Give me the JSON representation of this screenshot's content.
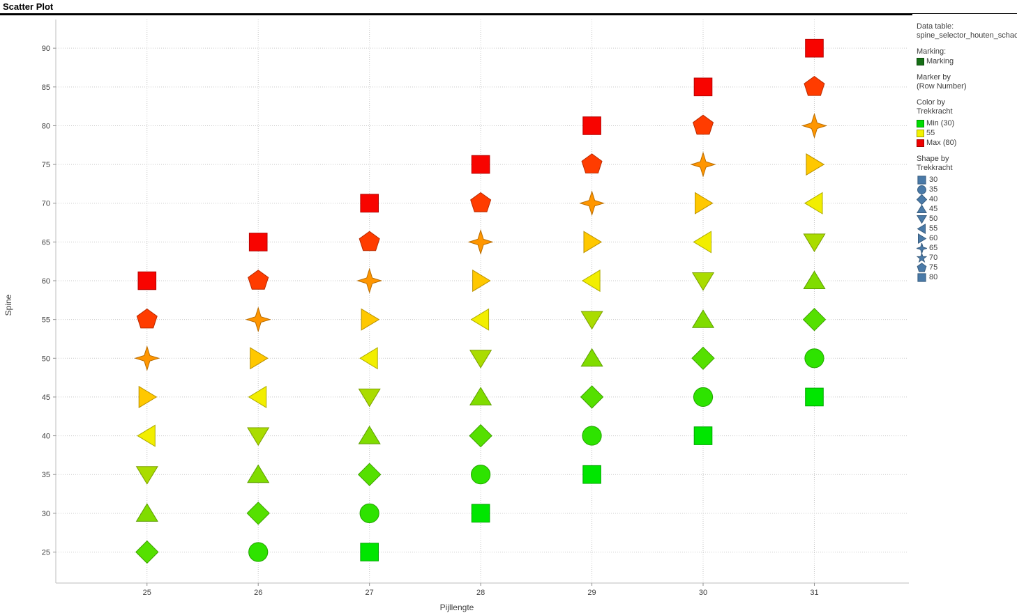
{
  "title": "Scatter Plot",
  "axes": {
    "xlabel": "Pijllengte",
    "ylabel": "Spine",
    "x_ticks": [
      25,
      26,
      27,
      28,
      29,
      30,
      31
    ],
    "y_ticks": [
      25,
      30,
      35,
      40,
      45,
      50,
      55,
      60,
      65,
      70,
      75,
      80,
      85,
      90
    ]
  },
  "legend": {
    "data_table_label": "Data table:",
    "data_table_value": "spine_selector_houten_schac",
    "marking_label": "Marking:",
    "marking_items": [
      {
        "label": "Marking",
        "color": "#156E15"
      }
    ],
    "marker_by_label": "Marker by",
    "marker_by_value": "(Row Number)",
    "color_by_label": "Color by",
    "color_by_value": "Trekkracht",
    "color_items": [
      {
        "label": "Min (30)",
        "color": "#00DC00"
      },
      {
        "label": "55",
        "color": "#F2F200"
      },
      {
        "label": "Max (80)",
        "color": "#EE0000"
      }
    ],
    "shape_by_label": "Shape by",
    "shape_by_value": "Trekkracht",
    "icon_color": "#4A7AA8",
    "shape_items": [
      {
        "label": "30",
        "shape": "square"
      },
      {
        "label": "35",
        "shape": "circle"
      },
      {
        "label": "40",
        "shape": "diamond"
      },
      {
        "label": "45",
        "shape": "triangle-up"
      },
      {
        "label": "50",
        "shape": "triangle-down"
      },
      {
        "label": "55",
        "shape": "triangle-left"
      },
      {
        "label": "60",
        "shape": "triangle-right"
      },
      {
        "label": "65",
        "shape": "star4"
      },
      {
        "label": "70",
        "shape": "star5"
      },
      {
        "label": "75",
        "shape": "pentagon"
      },
      {
        "label": "80",
        "shape": "square"
      }
    ]
  },
  "colors": {
    "axis_line": "#BEBEBE",
    "grid": "#C9C9C9",
    "tick": "#909090",
    "tick_text": "#404040",
    "legend_text": "#3C3C3C"
  },
  "chart_data": {
    "type": "scatter",
    "title": "Scatter Plot",
    "xlabel": "Pijllengte",
    "ylabel": "Spine",
    "xlim": [
      24.18,
      31.85
    ],
    "ylim": [
      21.0,
      93.7
    ],
    "x_ticks": [
      25,
      26,
      27,
      28,
      29,
      30,
      31
    ],
    "y_ticks": [
      25,
      30,
      35,
      40,
      45,
      50,
      55,
      60,
      65,
      70,
      75,
      80,
      85,
      90
    ],
    "grid": "dotted",
    "legend_position": "right",
    "shape_by_trekkracht": {
      "30": "square",
      "35": "circle",
      "40": "diamond",
      "45": "triangle-up",
      "50": "triangle-down",
      "55": "triangle-left",
      "60": "triangle-right",
      "65": "star4",
      "70": "star5",
      "75": "pentagon",
      "80": "square"
    },
    "color_by_trekkracht": {
      "30": "#00E600",
      "35": "#2EE300",
      "40": "#55E000",
      "45": "#80DC00",
      "50": "#AADC00",
      "55": "#F2EE00",
      "60": "#FFC800",
      "65": "#FF9600",
      "75": "#FF3C00",
      "80": "#F80400"
    },
    "points": [
      {
        "x": 25,
        "y": 25,
        "trekkracht": 40
      },
      {
        "x": 25,
        "y": 30,
        "trekkracht": 45
      },
      {
        "x": 25,
        "y": 35,
        "trekkracht": 50
      },
      {
        "x": 25,
        "y": 40,
        "trekkracht": 55
      },
      {
        "x": 25,
        "y": 45,
        "trekkracht": 60
      },
      {
        "x": 25,
        "y": 50,
        "trekkracht": 65
      },
      {
        "x": 25,
        "y": 55,
        "trekkracht": 75
      },
      {
        "x": 25,
        "y": 60,
        "trekkracht": 80
      },
      {
        "x": 26,
        "y": 25,
        "trekkracht": 35
      },
      {
        "x": 26,
        "y": 30,
        "trekkracht": 40
      },
      {
        "x": 26,
        "y": 35,
        "trekkracht": 45
      },
      {
        "x": 26,
        "y": 40,
        "trekkracht": 50
      },
      {
        "x": 26,
        "y": 45,
        "trekkracht": 55
      },
      {
        "x": 26,
        "y": 50,
        "trekkracht": 60
      },
      {
        "x": 26,
        "y": 55,
        "trekkracht": 65
      },
      {
        "x": 26,
        "y": 60,
        "trekkracht": 75
      },
      {
        "x": 26,
        "y": 65,
        "trekkracht": 80
      },
      {
        "x": 27,
        "y": 25,
        "trekkracht": 30
      },
      {
        "x": 27,
        "y": 30,
        "trekkracht": 35
      },
      {
        "x": 27,
        "y": 35,
        "trekkracht": 40
      },
      {
        "x": 27,
        "y": 40,
        "trekkracht": 45
      },
      {
        "x": 27,
        "y": 45,
        "trekkracht": 50
      },
      {
        "x": 27,
        "y": 50,
        "trekkracht": 55
      },
      {
        "x": 27,
        "y": 55,
        "trekkracht": 60
      },
      {
        "x": 27,
        "y": 60,
        "trekkracht": 65
      },
      {
        "x": 27,
        "y": 65,
        "trekkracht": 75
      },
      {
        "x": 27,
        "y": 70,
        "trekkracht": 80
      },
      {
        "x": 28,
        "y": 30,
        "trekkracht": 30
      },
      {
        "x": 28,
        "y": 35,
        "trekkracht": 35
      },
      {
        "x": 28,
        "y": 40,
        "trekkracht": 40
      },
      {
        "x": 28,
        "y": 45,
        "trekkracht": 45
      },
      {
        "x": 28,
        "y": 50,
        "trekkracht": 50
      },
      {
        "x": 28,
        "y": 55,
        "trekkracht": 55
      },
      {
        "x": 28,
        "y": 60,
        "trekkracht": 60
      },
      {
        "x": 28,
        "y": 65,
        "trekkracht": 65
      },
      {
        "x": 28,
        "y": 70,
        "trekkracht": 75
      },
      {
        "x": 28,
        "y": 75,
        "trekkracht": 80
      },
      {
        "x": 29,
        "y": 35,
        "trekkracht": 30
      },
      {
        "x": 29,
        "y": 40,
        "trekkracht": 35
      },
      {
        "x": 29,
        "y": 45,
        "trekkracht": 40
      },
      {
        "x": 29,
        "y": 50,
        "trekkracht": 45
      },
      {
        "x": 29,
        "y": 55,
        "trekkracht": 50
      },
      {
        "x": 29,
        "y": 60,
        "trekkracht": 55
      },
      {
        "x": 29,
        "y": 65,
        "trekkracht": 60
      },
      {
        "x": 29,
        "y": 70,
        "trekkracht": 65
      },
      {
        "x": 29,
        "y": 75,
        "trekkracht": 75
      },
      {
        "x": 29,
        "y": 80,
        "trekkracht": 80
      },
      {
        "x": 30,
        "y": 40,
        "trekkracht": 30
      },
      {
        "x": 30,
        "y": 45,
        "trekkracht": 35
      },
      {
        "x": 30,
        "y": 50,
        "trekkracht": 40
      },
      {
        "x": 30,
        "y": 55,
        "trekkracht": 45
      },
      {
        "x": 30,
        "y": 60,
        "trekkracht": 50
      },
      {
        "x": 30,
        "y": 65,
        "trekkracht": 55
      },
      {
        "x": 30,
        "y": 70,
        "trekkracht": 60
      },
      {
        "x": 30,
        "y": 75,
        "trekkracht": 65
      },
      {
        "x": 30,
        "y": 80,
        "trekkracht": 75
      },
      {
        "x": 30,
        "y": 85,
        "trekkracht": 80
      },
      {
        "x": 31,
        "y": 45,
        "trekkracht": 30
      },
      {
        "x": 31,
        "y": 50,
        "trekkracht": 35
      },
      {
        "x": 31,
        "y": 55,
        "trekkracht": 40
      },
      {
        "x": 31,
        "y": 60,
        "trekkracht": 45
      },
      {
        "x": 31,
        "y": 65,
        "trekkracht": 50
      },
      {
        "x": 31,
        "y": 70,
        "trekkracht": 55
      },
      {
        "x": 31,
        "y": 75,
        "trekkracht": 60
      },
      {
        "x": 31,
        "y": 80,
        "trekkracht": 65
      },
      {
        "x": 31,
        "y": 85,
        "trekkracht": 75
      },
      {
        "x": 31,
        "y": 90,
        "trekkracht": 80
      }
    ]
  }
}
